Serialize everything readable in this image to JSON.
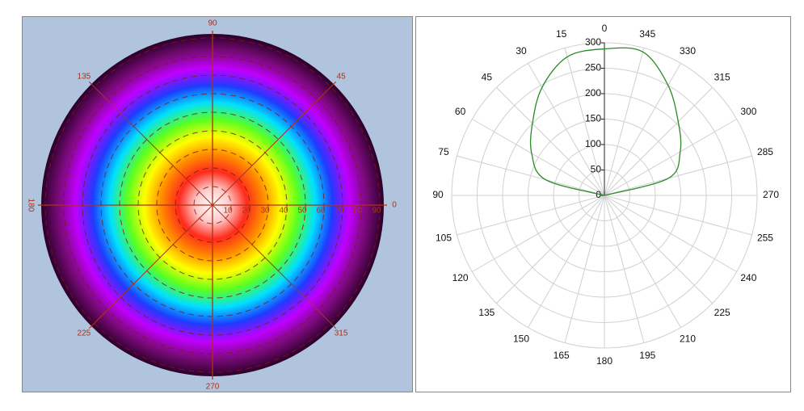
{
  "chart_data": [
    {
      "type": "polar_heatmap",
      "rlim": [
        0,
        90
      ],
      "rticks": [
        10,
        20,
        30,
        40,
        50,
        60,
        70,
        80,
        90
      ],
      "angle_ticks": [
        0,
        45,
        90,
        135,
        180,
        225,
        270,
        315
      ],
      "colormap": [
        "#ffffff",
        "#ffc8c8",
        "#ff2a1a",
        "#ff8c00",
        "#ffff00",
        "#5cff20",
        "#00e0ff",
        "#1e3cff",
        "#c000ff",
        "#7a0a7a",
        "#2a0028"
      ],
      "axis_color": "#b03018",
      "background": "#b0c4de"
    },
    {
      "type": "polar_line",
      "x": [
        90,
        75,
        60,
        45,
        30,
        15,
        0,
        345,
        330,
        315,
        300,
        285,
        270
      ],
      "series": [
        {
          "color": "#2a8a2a",
          "values": [
            0,
            120,
            165,
            200,
            245,
            282,
            288,
            292,
            250,
            205,
            172,
            130,
            0
          ]
        }
      ],
      "rlim": [
        0,
        300
      ],
      "rticks": [
        0,
        50,
        100,
        150,
        200,
        250,
        300
      ],
      "angle_ticks": [
        0,
        15,
        30,
        45,
        60,
        75,
        90,
        105,
        120,
        135,
        150,
        165,
        180,
        195,
        210,
        225,
        240,
        255,
        270,
        285,
        300,
        315,
        330,
        345
      ],
      "grid": true
    }
  ]
}
